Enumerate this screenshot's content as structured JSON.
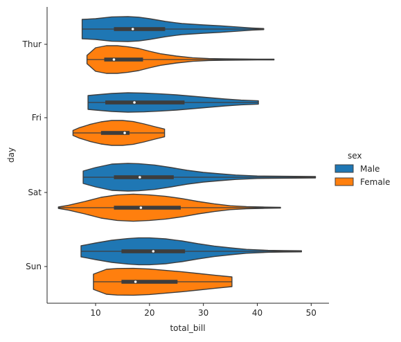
{
  "chart_data": {
    "type": "violin",
    "orientation": "horizontal",
    "xlabel": "total_bill",
    "ylabel": "day",
    "xlim": [
      1,
      53.3
    ],
    "xticks": [
      10,
      20,
      30,
      40,
      50
    ],
    "categories": [
      "Thur",
      "Fri",
      "Sat",
      "Sun"
    ],
    "grid": false,
    "legend": {
      "title": "sex",
      "placement": "right",
      "entries": [
        "Male",
        "Female"
      ]
    },
    "series": [
      {
        "name": "Male",
        "color": "#1f77b4",
        "groups": [
          {
            "day": "Thur",
            "min": 7.5,
            "q1": 13.4,
            "median": 16.9,
            "q3": 22.9,
            "max": 41.2,
            "density": [
              [
                7.5,
                0.7
              ],
              [
                10,
                0.75
              ],
              [
                13,
                0.88
              ],
              [
                16,
                0.9
              ],
              [
                18,
                0.86
              ],
              [
                20,
                0.75
              ],
              [
                23,
                0.55
              ],
              [
                26,
                0.4
              ],
              [
                30,
                0.3
              ],
              [
                33,
                0.24
              ],
              [
                36,
                0.16
              ],
              [
                39,
                0.08
              ],
              [
                41.2,
                0.04
              ]
            ]
          },
          {
            "day": "Fri",
            "min": 8.6,
            "q1": 11.8,
            "median": 17.2,
            "q3": 26.5,
            "max": 40.2,
            "density": [
              [
                8.6,
                0.5
              ],
              [
                10,
                0.55
              ],
              [
                13,
                0.65
              ],
              [
                16,
                0.7
              ],
              [
                19,
                0.68
              ],
              [
                22,
                0.62
              ],
              [
                25,
                0.55
              ],
              [
                28,
                0.45
              ],
              [
                31,
                0.35
              ],
              [
                34,
                0.25
              ],
              [
                37,
                0.17
              ],
              [
                40.2,
                0.12
              ]
            ]
          },
          {
            "day": "Sat",
            "min": 7.7,
            "q1": 13.4,
            "median": 18.2,
            "q3": 24.5,
            "max": 50.8,
            "density": [
              [
                7.7,
                0.45
              ],
              [
                10,
                0.7
              ],
              [
                13,
                0.95
              ],
              [
                16,
                1.0
              ],
              [
                18,
                0.98
              ],
              [
                21,
                0.88
              ],
              [
                24,
                0.7
              ],
              [
                27,
                0.5
              ],
              [
                30,
                0.35
              ],
              [
                33,
                0.25
              ],
              [
                36,
                0.16
              ],
              [
                40,
                0.09
              ],
              [
                45,
                0.07
              ],
              [
                50.8,
                0.05
              ]
            ]
          },
          {
            "day": "Sun",
            "min": 7.3,
            "q1": 14.8,
            "median": 20.7,
            "q3": 26.6,
            "max": 48.2,
            "density": [
              [
                7.3,
                0.4
              ],
              [
                10,
                0.6
              ],
              [
                13,
                0.8
              ],
              [
                16,
                0.92
              ],
              [
                18,
                0.97
              ],
              [
                20,
                0.97
              ],
              [
                23,
                0.9
              ],
              [
                26,
                0.75
              ],
              [
                29,
                0.55
              ],
              [
                32,
                0.38
              ],
              [
                35,
                0.25
              ],
              [
                38,
                0.14
              ],
              [
                42,
                0.07
              ],
              [
                45,
                0.05
              ],
              [
                48.2,
                0.04
              ]
            ]
          }
        ]
      },
      {
        "name": "Female",
        "color": "#ff7f0e",
        "groups": [
          {
            "day": "Thur",
            "min": 8.4,
            "q1": 11.6,
            "median": 13.4,
            "q3": 18.8,
            "max": 43.1,
            "density": [
              [
                8.4,
                0.3
              ],
              [
                10,
                0.85
              ],
              [
                12,
                1.0
              ],
              [
                14,
                1.0
              ],
              [
                16,
                0.92
              ],
              [
                18,
                0.8
              ],
              [
                20,
                0.6
              ],
              [
                22,
                0.42
              ],
              [
                25,
                0.25
              ],
              [
                28,
                0.13
              ],
              [
                31,
                0.07
              ],
              [
                34,
                0.05
              ],
              [
                37,
                0.04
              ],
              [
                40,
                0.03
              ],
              [
                43.1,
                0.03
              ]
            ]
          },
          {
            "day": "Fri",
            "min": 5.8,
            "q1": 11.0,
            "median": 15.4,
            "q3": 16.3,
            "max": 22.8,
            "density": [
              [
                5.8,
                0.18
              ],
              [
                7,
                0.38
              ],
              [
                9,
                0.62
              ],
              [
                11,
                0.8
              ],
              [
                13,
                0.9
              ],
              [
                15,
                0.9
              ],
              [
                17,
                0.82
              ],
              [
                19,
                0.65
              ],
              [
                21,
                0.45
              ],
              [
                22.8,
                0.28
              ]
            ]
          },
          {
            "day": "Sat",
            "min": 3.1,
            "q1": 13.4,
            "median": 18.4,
            "q3": 25.8,
            "max": 44.3,
            "density": [
              [
                3.1,
                0.05
              ],
              [
                5,
                0.18
              ],
              [
                8,
                0.45
              ],
              [
                11,
                0.75
              ],
              [
                14,
                0.92
              ],
              [
                17,
                0.98
              ],
              [
                20,
                0.92
              ],
              [
                23,
                0.82
              ],
              [
                26,
                0.66
              ],
              [
                29,
                0.45
              ],
              [
                32,
                0.28
              ],
              [
                35,
                0.14
              ],
              [
                38,
                0.08
              ],
              [
                41,
                0.05
              ],
              [
                44.3,
                0.03
              ]
            ]
          },
          {
            "day": "Sun",
            "min": 9.6,
            "q1": 14.8,
            "median": 17.4,
            "q3": 25.2,
            "max": 35.3,
            "density": [
              [
                9.6,
                0.55
              ],
              [
                12,
                0.9
              ],
              [
                14,
                0.96
              ],
              [
                17,
                0.97
              ],
              [
                20,
                0.92
              ],
              [
                23,
                0.82
              ],
              [
                26,
                0.72
              ],
              [
                29,
                0.6
              ],
              [
                32,
                0.48
              ],
              [
                35.3,
                0.35
              ]
            ]
          }
        ]
      }
    ]
  }
}
